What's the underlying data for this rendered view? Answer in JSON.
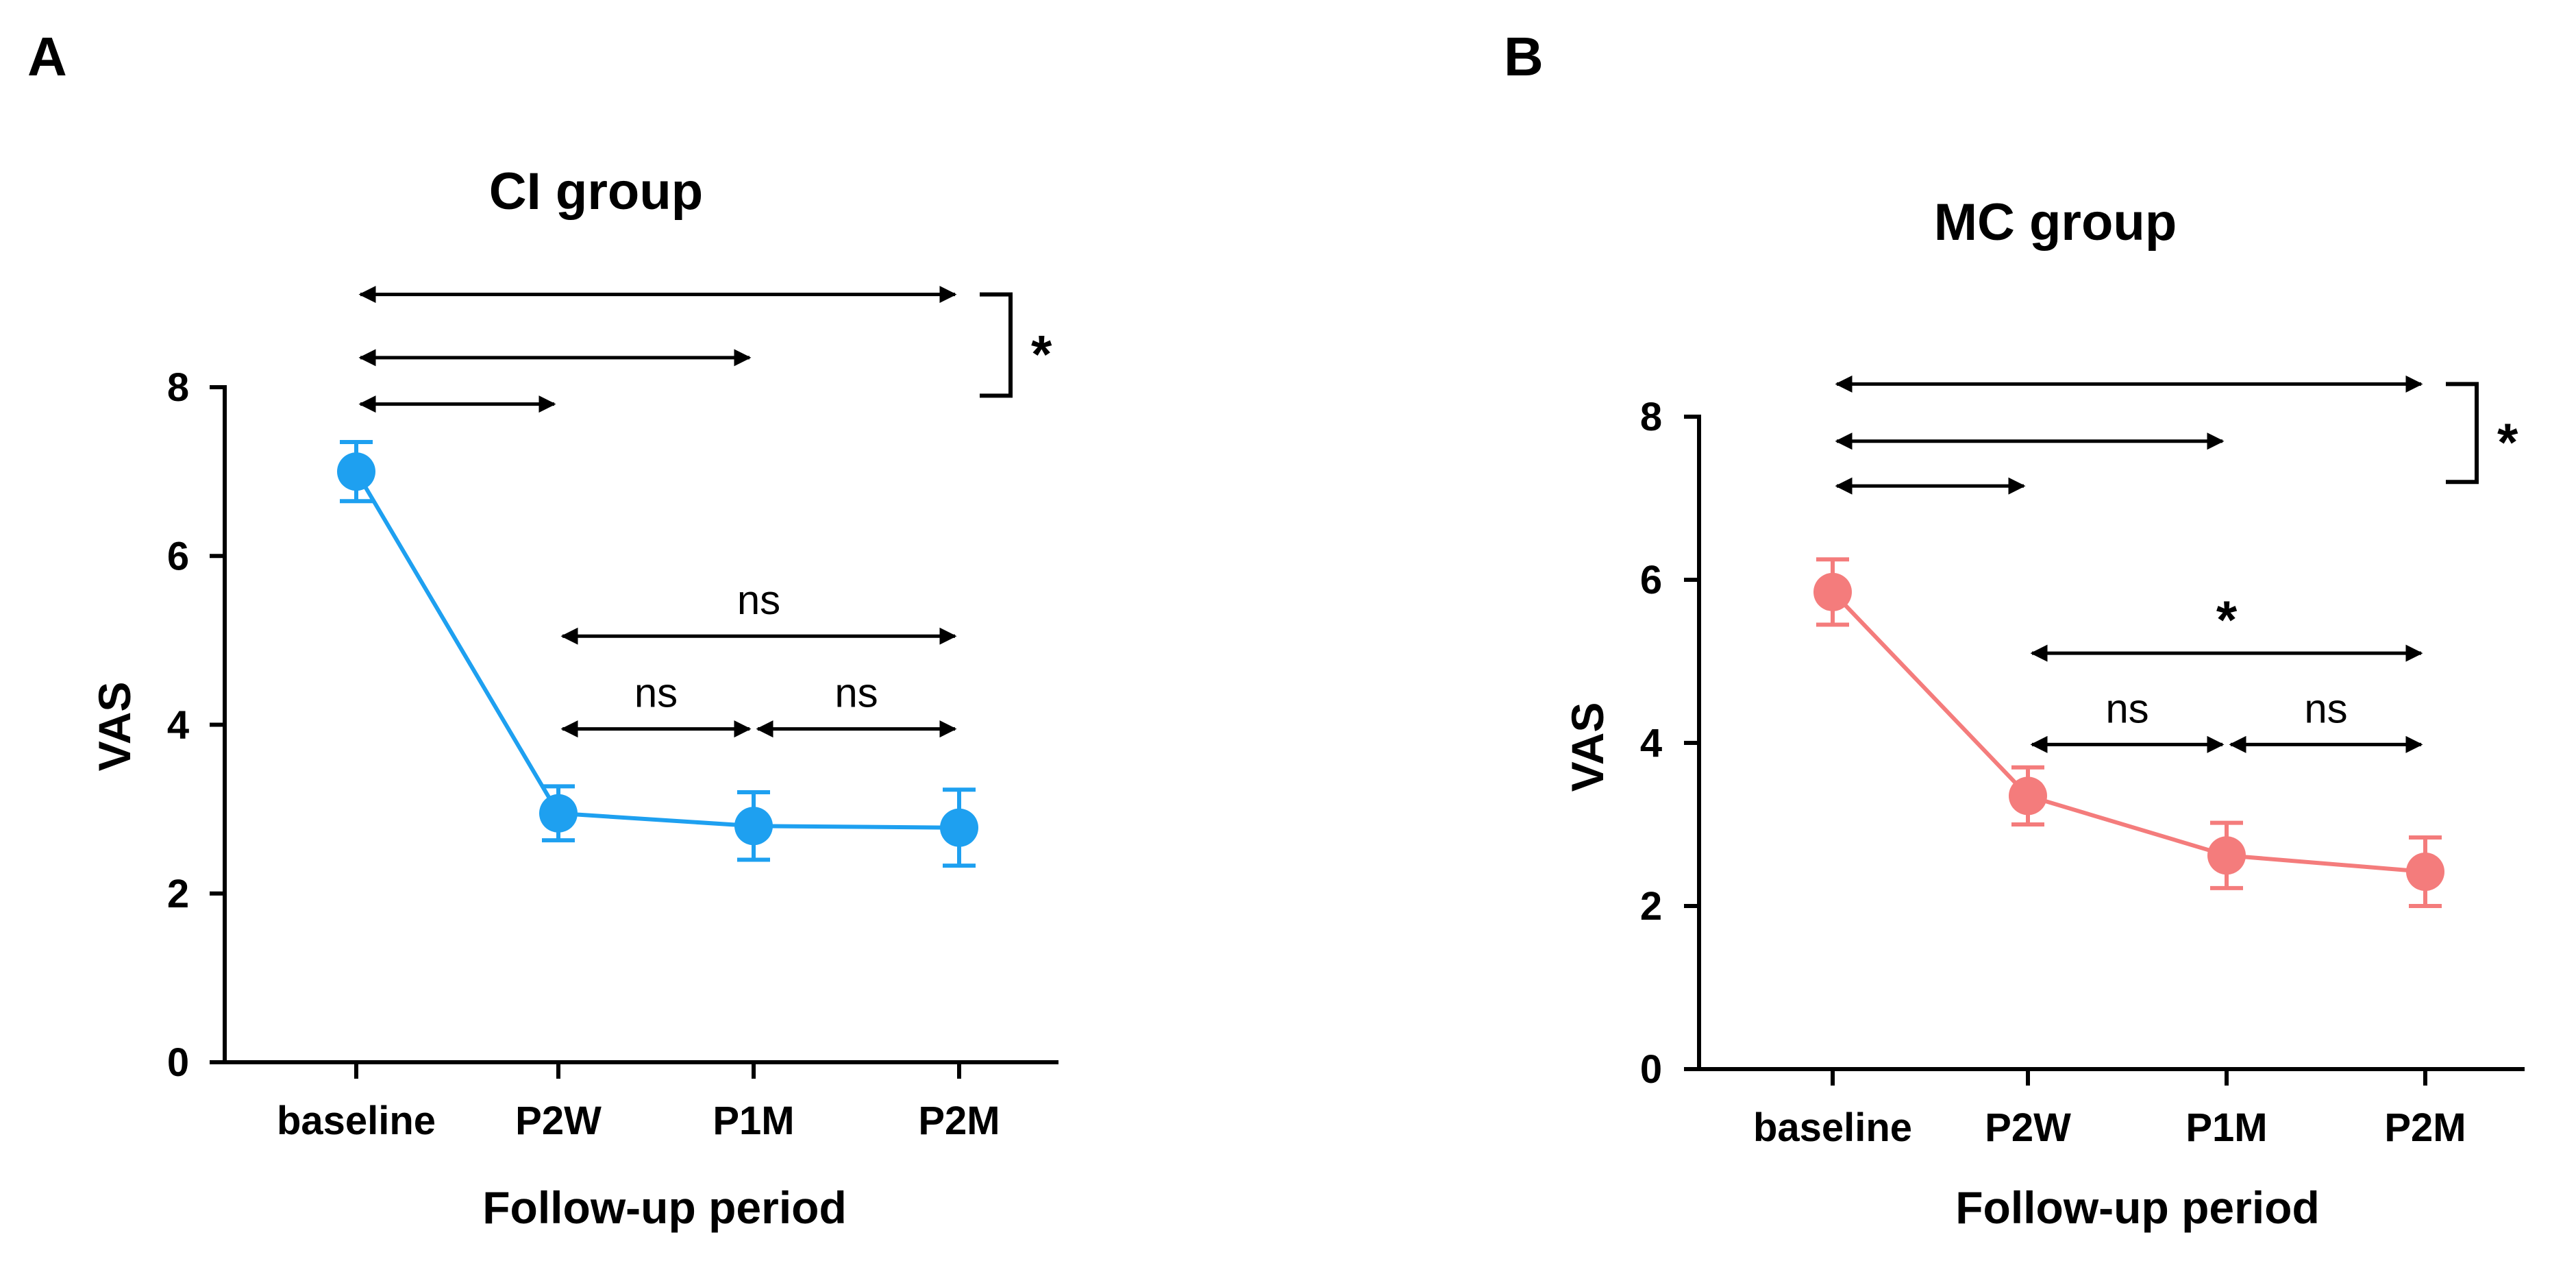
{
  "chart_data": [
    {
      "type": "line",
      "panel_label": "A",
      "title": "CI group",
      "xlabel": "Follow-up period",
      "ylabel": "VAS",
      "categories": [
        "baseline",
        "P2W",
        "P1M",
        "P2M"
      ],
      "yticks": [
        "0",
        "2",
        "4",
        "6",
        "8"
      ],
      "ylim": [
        0,
        8
      ],
      "series": [
        {
          "name": "CI group",
          "color": "#1ea0f0",
          "values": [
            7.0,
            2.95,
            2.8,
            2.78
          ],
          "errors": [
            0.35,
            0.32,
            0.4,
            0.45
          ]
        }
      ],
      "comparisons": [
        {
          "from": 0,
          "to": 1,
          "level": 7.8,
          "label": ""
        },
        {
          "from": 0,
          "to": 2,
          "level": 8.35,
          "label": ""
        },
        {
          "from": 0,
          "to": 3,
          "level": 9.1,
          "label": ""
        },
        {
          "from": 1,
          "to": 2,
          "level": 3.95,
          "label": "ns"
        },
        {
          "from": 2,
          "to": 3,
          "level": 3.95,
          "label": "ns"
        },
        {
          "from": 1,
          "to": 3,
          "level": 5.05,
          "label": "ns"
        }
      ],
      "bracket": {
        "top": 9.1,
        "bottom": 7.9,
        "label": "*"
      }
    },
    {
      "type": "line",
      "panel_label": "B",
      "title": "MC group",
      "xlabel": "Follow-up period",
      "ylabel": "VAS",
      "categories": [
        "baseline",
        "P2W",
        "P1M",
        "P2M"
      ],
      "yticks": [
        "0",
        "2",
        "4",
        "6",
        "8"
      ],
      "ylim": [
        0,
        8
      ],
      "series": [
        {
          "name": "MC group",
          "color": "#f47c7c",
          "values": [
            5.85,
            3.35,
            2.62,
            2.42
          ],
          "errors": [
            0.4,
            0.35,
            0.4,
            0.42
          ]
        }
      ],
      "comparisons": [
        {
          "from": 0,
          "to": 1,
          "level": 7.15,
          "label": ""
        },
        {
          "from": 0,
          "to": 2,
          "level": 7.7,
          "label": ""
        },
        {
          "from": 0,
          "to": 3,
          "level": 8.4,
          "label": ""
        },
        {
          "from": 1,
          "to": 2,
          "level": 3.98,
          "label": "ns"
        },
        {
          "from": 2,
          "to": 3,
          "level": 3.98,
          "label": "ns"
        },
        {
          "from": 1,
          "to": 3,
          "level": 5.1,
          "label": "*"
        }
      ],
      "bracket": {
        "top": 8.4,
        "bottom": 7.2,
        "label": "*"
      }
    }
  ]
}
